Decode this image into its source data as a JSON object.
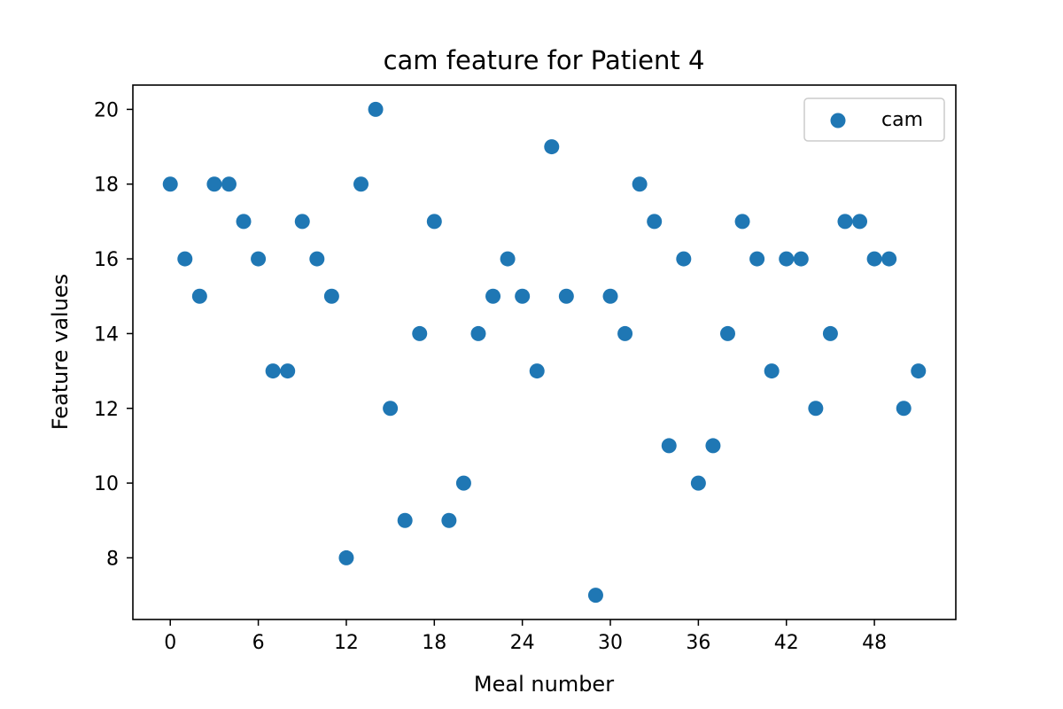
{
  "chart_data": {
    "type": "scatter",
    "title": "cam feature for Patient 4",
    "xlabel": "Meal number",
    "ylabel": "Feature values",
    "xlim": [
      -2.55,
      53.55
    ],
    "ylim": [
      6.35,
      20.65
    ],
    "xticks": [
      0,
      6,
      12,
      18,
      24,
      30,
      36,
      42,
      48
    ],
    "yticks": [
      8,
      10,
      12,
      14,
      16,
      18,
      20
    ],
    "grid": false,
    "legend_position": "top-right",
    "series": [
      {
        "name": "cam",
        "color": "#1f77b4",
        "x": [
          0,
          1,
          2,
          3,
          4,
          5,
          6,
          7,
          8,
          9,
          10,
          11,
          12,
          13,
          14,
          15,
          16,
          17,
          18,
          19,
          20,
          21,
          22,
          23,
          24,
          25,
          26,
          27,
          28,
          29,
          30,
          31,
          32,
          33,
          34,
          35,
          36,
          37,
          38,
          39,
          40,
          41,
          42,
          43,
          44,
          45,
          46,
          47,
          48,
          49,
          50,
          51
        ],
        "y": [
          18,
          16,
          15,
          18,
          18,
          17,
          16,
          13,
          13,
          17,
          16,
          15,
          8,
          18,
          20,
          12,
          9,
          14,
          17,
          9,
          10,
          14,
          15,
          16,
          15,
          13,
          19,
          15,
          null,
          7,
          15,
          14,
          18,
          17,
          11,
          16,
          10,
          11,
          14,
          17,
          16,
          13,
          16,
          16,
          12,
          14,
          17,
          17,
          16,
          16,
          12,
          13
        ]
      }
    ]
  }
}
